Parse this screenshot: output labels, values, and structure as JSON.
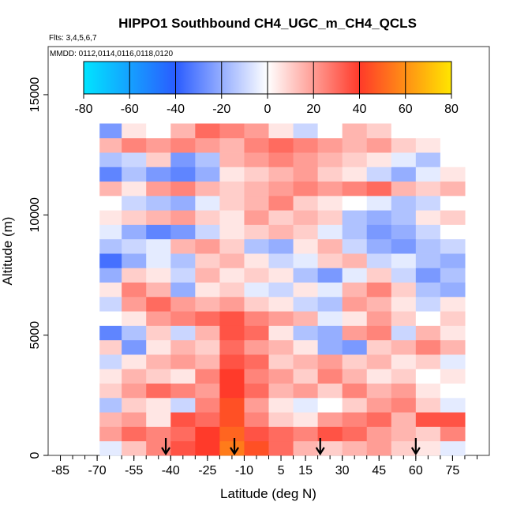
{
  "chart_data": {
    "type": "heatmap",
    "title": "HIPPO1 Southbound CH4_UGC_m_CH4_QCLS",
    "subtitle_flights": "Flts: 3,4,5,6,7",
    "subtitle_dates": "MMDD: 0112,0114,0116,0118,0120",
    "xlabel": "Latitude (deg N)",
    "ylabel": "Altitude (m)",
    "xlim": [
      -90,
      90
    ],
    "ylim": [
      0,
      17000
    ],
    "x_ticks_major": [
      -85,
      -70,
      -55,
      -40,
      -25,
      -10,
      5,
      15,
      30,
      45,
      60,
      75
    ],
    "x_tick_labels": [
      "-85",
      "-70",
      "-55",
      "-40",
      "-25",
      "-10",
      "5",
      "15",
      "30",
      "45",
      "60",
      "75"
    ],
    "y_ticks": [
      0,
      5000,
      10000,
      15000
    ],
    "y_tick_labels": [
      "0",
      "5000",
      "10000",
      "15000"
    ],
    "colorbar": {
      "min": -80,
      "max": 80,
      "ticks": [
        -80,
        -60,
        -40,
        -20,
        0,
        20,
        40,
        60,
        80
      ],
      "tick_labels": [
        "-80",
        "-60",
        "-40",
        "-20",
        "0",
        "20",
        "40",
        "60",
        "80"
      ],
      "colors": [
        "#00e5ff",
        "#2a5cff",
        "#ffffff",
        "#ff3a2a",
        "#ffe600"
      ]
    },
    "latitude_edges": [
      -69,
      -60,
      -50,
      -40,
      -30,
      -20,
      -10,
      0,
      10,
      20,
      30,
      40,
      50,
      60,
      70,
      80
    ],
    "altitude_bands": [
      {
        "alt": 300,
        "v": [
          -5,
          12,
          25,
          35,
          40,
          55,
          45,
          30,
          15,
          10,
          15,
          20,
          10,
          5,
          -5
        ]
      },
      {
        "alt": 900,
        "v": [
          20,
          30,
          25,
          30,
          40,
          50,
          35,
          30,
          25,
          35,
          30,
          20,
          15,
          10,
          25
        ]
      },
      {
        "alt": 1500,
        "v": [
          15,
          20,
          5,
          35,
          30,
          45,
          25,
          10,
          5,
          20,
          25,
          30,
          15,
          35,
          35
        ]
      },
      {
        "alt": 2100,
        "v": [
          -15,
          10,
          5,
          -10,
          25,
          45,
          20,
          5,
          -5,
          0,
          10,
          20,
          25,
          10,
          -5
        ]
      },
      {
        "alt": 2700,
        "v": [
          10,
          20,
          30,
          25,
          20,
          40,
          30,
          15,
          20,
          10,
          25,
          15,
          20,
          5,
          0
        ]
      },
      {
        "alt": 3300,
        "v": [
          5,
          15,
          10,
          5,
          25,
          40,
          25,
          20,
          10,
          25,
          15,
          5,
          10,
          0,
          5
        ]
      },
      {
        "alt": 3900,
        "v": [
          -10,
          5,
          15,
          20,
          15,
          35,
          30,
          10,
          15,
          20,
          10,
          15,
          5,
          10,
          -5
        ]
      },
      {
        "alt": 4500,
        "v": [
          10,
          -25,
          5,
          15,
          10,
          30,
          20,
          15,
          5,
          -20,
          -25,
          10,
          15,
          25,
          15
        ]
      },
      {
        "alt": 5100,
        "v": [
          -30,
          -15,
          10,
          -10,
          15,
          35,
          30,
          5,
          -15,
          -20,
          20,
          25,
          -10,
          15,
          5
        ]
      },
      {
        "alt": 5700,
        "v": [
          0,
          5,
          20,
          25,
          30,
          35,
          25,
          20,
          15,
          -5,
          5,
          20,
          10,
          0,
          10
        ]
      },
      {
        "alt": 6300,
        "v": [
          -10,
          20,
          30,
          20,
          15,
          20,
          10,
          5,
          -10,
          -15,
          20,
          15,
          5,
          -10,
          5
        ]
      },
      {
        "alt": 6900,
        "v": [
          5,
          25,
          15,
          -20,
          5,
          10,
          -5,
          -10,
          5,
          -5,
          15,
          25,
          10,
          -15,
          -20
        ]
      },
      {
        "alt": 7500,
        "v": [
          -20,
          10,
          5,
          -10,
          15,
          5,
          10,
          5,
          -15,
          -25,
          -5,
          10,
          -10,
          -25,
          -15
        ]
      },
      {
        "alt": 8100,
        "v": [
          -35,
          -20,
          -5,
          -15,
          10,
          15,
          5,
          -10,
          -5,
          10,
          15,
          -10,
          -5,
          -15,
          -20
        ]
      },
      {
        "alt": 8700,
        "v": [
          -15,
          -10,
          -5,
          15,
          20,
          10,
          -15,
          -20,
          5,
          15,
          -10,
          -20,
          -25,
          -15,
          -10
        ]
      },
      {
        "alt": 9300,
        "v": [
          -5,
          -20,
          -30,
          -25,
          -10,
          5,
          10,
          15,
          10,
          -5,
          -15,
          -25,
          -20,
          -10,
          0
        ]
      },
      {
        "alt": 9900,
        "v": [
          5,
          10,
          15,
          20,
          10,
          5,
          20,
          10,
          15,
          10,
          -15,
          -20,
          -15,
          5,
          10
        ]
      },
      {
        "alt": 10500,
        "v": [
          0,
          -10,
          -15,
          -20,
          -5,
          10,
          15,
          25,
          10,
          5,
          0,
          -5,
          -15,
          -10,
          0
        ]
      },
      {
        "alt": 11100,
        "v": [
          15,
          5,
          20,
          25,
          15,
          10,
          15,
          20,
          25,
          20,
          25,
          30,
          15,
          10,
          15
        ]
      },
      {
        "alt": 11700,
        "v": [
          -30,
          -15,
          -25,
          -30,
          -20,
          5,
          10,
          15,
          20,
          10,
          5,
          -10,
          -20,
          -5,
          5
        ]
      },
      {
        "alt": 12300,
        "v": [
          -15,
          -10,
          10,
          -25,
          -15,
          15,
          20,
          25,
          20,
          15,
          10,
          5,
          -5,
          -15,
          0
        ]
      },
      {
        "alt": 12900,
        "v": [
          15,
          25,
          20,
          25,
          20,
          15,
          25,
          30,
          25,
          20,
          15,
          20,
          10,
          5,
          0
        ]
      },
      {
        "alt": 13500,
        "v": [
          -25,
          5,
          0,
          15,
          30,
          25,
          20,
          5,
          -10,
          0,
          15,
          10,
          0,
          0,
          0
        ]
      }
    ],
    "arrows_latitude": [
      -42,
      -14,
      21,
      60
    ]
  }
}
